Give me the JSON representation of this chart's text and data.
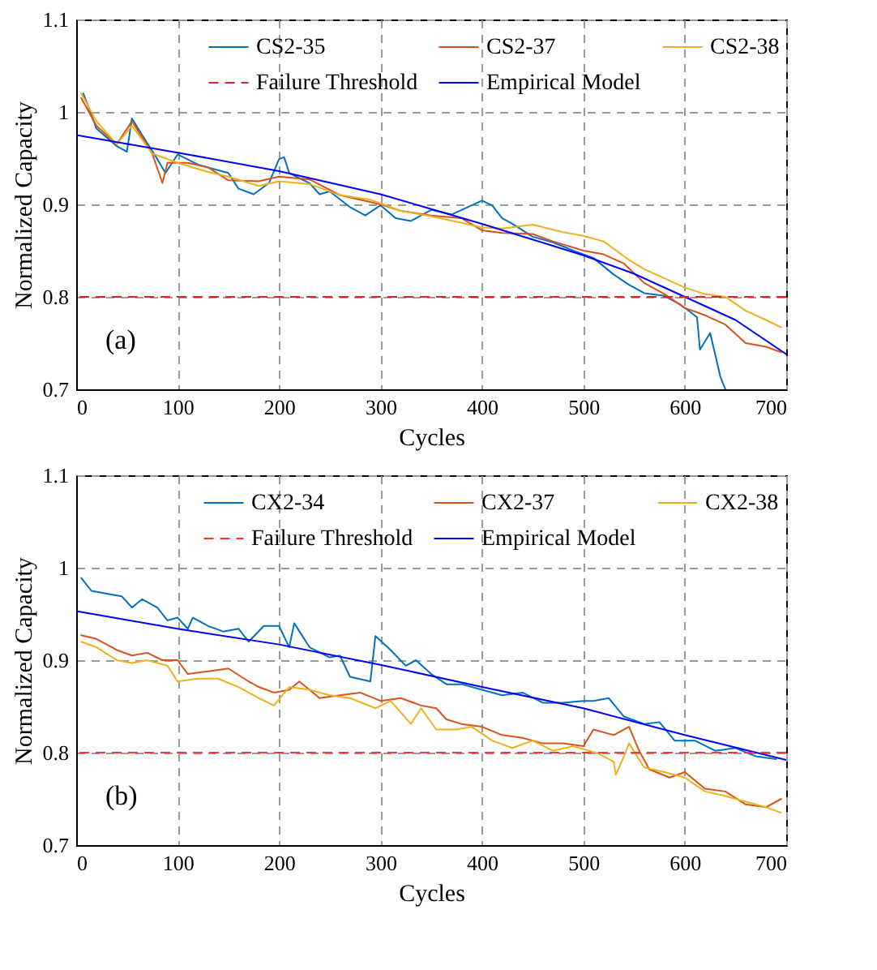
{
  "chart_data": [
    {
      "type": "line",
      "xlabel": "Cycles",
      "ylabel": "Normalized Capacity",
      "annotations": [
        "(a)"
      ],
      "xlim": [
        0,
        700
      ],
      "xticks": [
        0,
        100,
        200,
        300,
        400,
        500,
        600,
        700
      ],
      "ylim": [
        0.7,
        1.1
      ],
      "yticks": [
        0.7,
        0.8,
        0.9,
        1,
        1.1
      ],
      "grid": true,
      "legend": "top right",
      "line_style": "solid",
      "ref_lines": [
        {
          "axis": "y",
          "value": 0.8,
          "label": "Failure Threshold",
          "color": "#d62728",
          "line_style": "dashed"
        }
      ],
      "series": [
        {
          "name": "CS2-35",
          "color": "#0072bd",
          "x": [
            7,
            20,
            40,
            50,
            55,
            65,
            80,
            88,
            100,
            120,
            150,
            160,
            175,
            190,
            200,
            205,
            210,
            230,
            240,
            250,
            270,
            285,
            300,
            315,
            330,
            350,
            370,
            390,
            400,
            410,
            420,
            430,
            450,
            470,
            490,
            510,
            530,
            545,
            560,
            580,
            595,
            605,
            612,
            615,
            625,
            635,
            640
          ],
          "values": [
            1.02,
            0.982,
            0.963,
            0.957,
            0.993,
            0.975,
            0.949,
            0.934,
            0.954,
            0.943,
            0.934,
            0.917,
            0.911,
            0.923,
            0.949,
            0.951,
            0.934,
            0.923,
            0.911,
            0.914,
            0.897,
            0.888,
            0.899,
            0.885,
            0.882,
            0.894,
            0.889,
            0.899,
            0.904,
            0.899,
            0.885,
            0.879,
            0.865,
            0.859,
            0.85,
            0.842,
            0.824,
            0.813,
            0.804,
            0.801,
            0.792,
            0.784,
            0.778,
            0.743,
            0.761,
            0.714,
            0.7
          ]
        },
        {
          "name": "CS2-37",
          "color": "#d95319",
          "x": [
            5,
            20,
            40,
            55,
            75,
            85,
            90,
            110,
            130,
            150,
            180,
            200,
            230,
            260,
            300,
            320,
            350,
            380,
            400,
            420,
            450,
            470,
            500,
            520,
            540,
            560,
            580,
            600,
            620,
            640,
            660,
            680,
            695
          ],
          "values": [
            1.015,
            0.985,
            0.965,
            0.99,
            0.955,
            0.923,
            0.945,
            0.945,
            0.94,
            0.926,
            0.925,
            0.93,
            0.927,
            0.91,
            0.9,
            0.893,
            0.888,
            0.885,
            0.872,
            0.869,
            0.868,
            0.86,
            0.85,
            0.846,
            0.836,
            0.815,
            0.803,
            0.788,
            0.78,
            0.77,
            0.75,
            0.746,
            0.74
          ]
        },
        {
          "name": "CS2-38",
          "color": "#edb120",
          "x": [
            5,
            20,
            40,
            55,
            75,
            100,
            130,
            150,
            180,
            200,
            230,
            260,
            290,
            320,
            350,
            380,
            400,
            420,
            450,
            480,
            500,
            520,
            545,
            560,
            580,
            600,
            620,
            640,
            660,
            680,
            695
          ],
          "values": [
            1.02,
            0.99,
            0.965,
            0.985,
            0.955,
            0.945,
            0.935,
            0.93,
            0.92,
            0.925,
            0.922,
            0.91,
            0.905,
            0.893,
            0.887,
            0.88,
            0.875,
            0.874,
            0.878,
            0.87,
            0.866,
            0.86,
            0.84,
            0.83,
            0.82,
            0.81,
            0.803,
            0.8,
            0.785,
            0.775,
            0.767
          ]
        },
        {
          "name": "Empirical Model",
          "color": "#0000ff",
          "x": [
            0,
            100,
            200,
            300,
            400,
            500,
            550,
            600,
            650,
            700
          ],
          "values": [
            0.975,
            0.956,
            0.936,
            0.911,
            0.879,
            0.845,
            0.825,
            0.8,
            0.775,
            0.738
          ]
        }
      ]
    },
    {
      "type": "line",
      "xlabel": "Cycles",
      "ylabel": "Normalized Capacity",
      "annotations": [
        "(b)"
      ],
      "xlim": [
        0,
        700
      ],
      "xticks": [
        0,
        100,
        200,
        300,
        400,
        500,
        600,
        700
      ],
      "ylim": [
        0.7,
        1.1
      ],
      "yticks": [
        0.7,
        0.8,
        0.9,
        1,
        1.1
      ],
      "grid": true,
      "legend": "top right",
      "line_style": "solid",
      "ref_lines": [
        {
          "axis": "y",
          "value": 0.8,
          "label": "Failure Threshold",
          "color": "#ff3333",
          "line_style": "dashed"
        }
      ],
      "series": [
        {
          "name": "CX2-34",
          "color": "#0072bd",
          "x": [
            5,
            15,
            30,
            45,
            55,
            65,
            80,
            90,
            100,
            110,
            115,
            130,
            145,
            160,
            170,
            185,
            200,
            210,
            215,
            230,
            250,
            260,
            270,
            290,
            295,
            310,
            325,
            335,
            350,
            365,
            380,
            400,
            420,
            440,
            460,
            480,
            500,
            510,
            525,
            540,
            560,
            575,
            590,
            610,
            630,
            650,
            670,
            690
          ],
          "values": [
            0.989,
            0.975,
            0.972,
            0.969,
            0.957,
            0.966,
            0.957,
            0.943,
            0.946,
            0.934,
            0.946,
            0.937,
            0.931,
            0.934,
            0.92,
            0.937,
            0.937,
            0.914,
            0.94,
            0.914,
            0.903,
            0.905,
            0.882,
            0.877,
            0.926,
            0.911,
            0.894,
            0.9,
            0.885,
            0.874,
            0.874,
            0.868,
            0.862,
            0.865,
            0.854,
            0.854,
            0.856,
            0.856,
            0.859,
            0.839,
            0.831,
            0.833,
            0.813,
            0.813,
            0.802,
            0.805,
            0.796,
            0.793
          ]
        },
        {
          "name": "CX2-37",
          "color": "#d95319",
          "x": [
            5,
            20,
            40,
            55,
            70,
            85,
            100,
            110,
            130,
            150,
            170,
            180,
            195,
            210,
            220,
            240,
            260,
            280,
            300,
            320,
            340,
            355,
            365,
            380,
            400,
            420,
            440,
            460,
            480,
            500,
            510,
            530,
            545,
            555,
            565,
            585,
            600,
            620,
            640,
            660,
            680,
            695
          ],
          "values": [
            0.927,
            0.923,
            0.911,
            0.905,
            0.908,
            0.9,
            0.9,
            0.885,
            0.888,
            0.891,
            0.877,
            0.871,
            0.865,
            0.868,
            0.877,
            0.859,
            0.862,
            0.865,
            0.856,
            0.859,
            0.851,
            0.848,
            0.836,
            0.831,
            0.828,
            0.819,
            0.816,
            0.81,
            0.81,
            0.807,
            0.825,
            0.819,
            0.828,
            0.802,
            0.782,
            0.773,
            0.779,
            0.761,
            0.758,
            0.744,
            0.741,
            0.75
          ]
        },
        {
          "name": "CX2-38",
          "color": "#edb120",
          "x": [
            5,
            20,
            40,
            55,
            70,
            90,
            100,
            120,
            140,
            160,
            180,
            195,
            210,
            230,
            250,
            270,
            295,
            310,
            330,
            340,
            355,
            375,
            390,
            410,
            430,
            450,
            470,
            490,
            515,
            530,
            532,
            540,
            545,
            560,
            580,
            600,
            620,
            640,
            660,
            680,
            695
          ],
          "values": [
            0.92,
            0.914,
            0.9,
            0.897,
            0.9,
            0.894,
            0.877,
            0.88,
            0.88,
            0.871,
            0.859,
            0.851,
            0.871,
            0.868,
            0.862,
            0.859,
            0.848,
            0.856,
            0.831,
            0.848,
            0.825,
            0.825,
            0.828,
            0.813,
            0.805,
            0.813,
            0.802,
            0.807,
            0.799,
            0.79,
            0.776,
            0.796,
            0.81,
            0.784,
            0.779,
            0.773,
            0.758,
            0.753,
            0.747,
            0.741,
            0.735
          ]
        },
        {
          "name": "Empirical Model",
          "color": "#0000ff",
          "x": [
            0,
            100,
            200,
            300,
            400,
            500,
            600,
            700
          ],
          "values": [
            0.953,
            0.934,
            0.917,
            0.895,
            0.871,
            0.848,
            0.819,
            0.792
          ]
        }
      ]
    }
  ]
}
